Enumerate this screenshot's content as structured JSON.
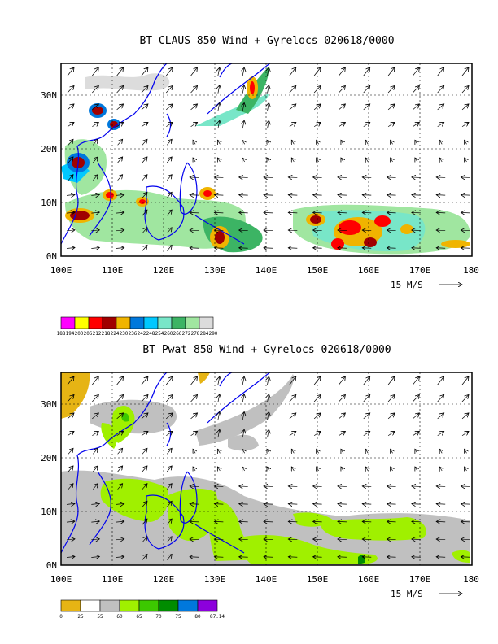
{
  "chart_data": [
    {
      "type": "heatmap",
      "title": "BT CLAUS 850 Wind + Gyrelocs 020618/0000",
      "x_ticks": [
        "100E",
        "110E",
        "120E",
        "130E",
        "140E",
        "150E",
        "160E",
        "170E",
        "180"
      ],
      "y_ticks": [
        "0N",
        "10N",
        "20N",
        "30N"
      ],
      "xlim": [
        100,
        180
      ],
      "ylim": [
        0,
        36
      ],
      "grid": true,
      "reference_vector": "15 M/S",
      "colorbar_labels": [
        "188",
        "194",
        "200",
        "206",
        "212",
        "218",
        "224",
        "230",
        "236",
        "242",
        "248",
        "254",
        "260",
        "266",
        "272",
        "278",
        "284",
        "290"
      ],
      "colorbar_colors": [
        "#ff00ff",
        "#ffff00",
        "#ff0000",
        "#a00000",
        "#f0b400",
        "#0078dc",
        "#00c8ff",
        "#78e6c8",
        "#3cb464",
        "#a0e6a0",
        "#dcdcdc"
      ],
      "color_fields": [
        {
          "lon": 104,
          "lat": 17,
          "color": "#a00000"
        },
        {
          "lon": 108,
          "lat": 28,
          "color": "#a00000"
        },
        {
          "lon": 110,
          "lat": 25,
          "color": "#a00000"
        },
        {
          "lon": 103,
          "lat": 8,
          "color": "#a00000"
        },
        {
          "lon": 109,
          "lat": 11,
          "color": "#ff0000"
        },
        {
          "lon": 116,
          "lat": 10,
          "color": "#ff0000"
        },
        {
          "lon": 130,
          "lat": 12,
          "color": "#ff0000"
        },
        {
          "lon": 136,
          "lat": 33,
          "color": "#ff0000"
        },
        {
          "lon": 130,
          "lat": 3,
          "color": "#a00000"
        },
        {
          "lon": 150,
          "lat": 7,
          "color": "#a00000"
        },
        {
          "lon": 160,
          "lat": 5,
          "color": "#ff0000"
        },
        {
          "lon": 165,
          "lat": 3,
          "color": "#f0b400"
        }
      ]
    },
    {
      "type": "heatmap",
      "title": "BT Pwat 850 Wind + Gyrelocs 020618/0000",
      "x_ticks": [
        "100E",
        "110E",
        "120E",
        "130E",
        "140E",
        "150E",
        "160E",
        "170E",
        "180"
      ],
      "y_ticks": [
        "0N",
        "10N",
        "20N",
        "30N"
      ],
      "xlim": [
        100,
        180
      ],
      "ylim": [
        0,
        36
      ],
      "grid": true,
      "reference_vector": "15 M/S",
      "colorbar_labels": [
        "0",
        "25",
        "55",
        "60",
        "65",
        "70",
        "75",
        "80",
        "87.14"
      ],
      "colorbar_colors": [
        "#e6b414",
        "#ffffff",
        "#c0c0c0",
        "#a0f000",
        "#3cc800",
        "#008c00",
        "#0078dc",
        "#8c00dc"
      ],
      "color_fields": [
        {
          "lon": 102,
          "lat": 32,
          "color": "#e6b414"
        },
        {
          "lon": 115,
          "lat": 28,
          "color": "#a0f000"
        },
        {
          "lon": 118,
          "lat": 11,
          "color": "#a0f000"
        },
        {
          "lon": 130,
          "lat": 8,
          "color": "#a0f000"
        },
        {
          "lon": 160,
          "lat": 5,
          "color": "#a0f000"
        }
      ]
    }
  ]
}
